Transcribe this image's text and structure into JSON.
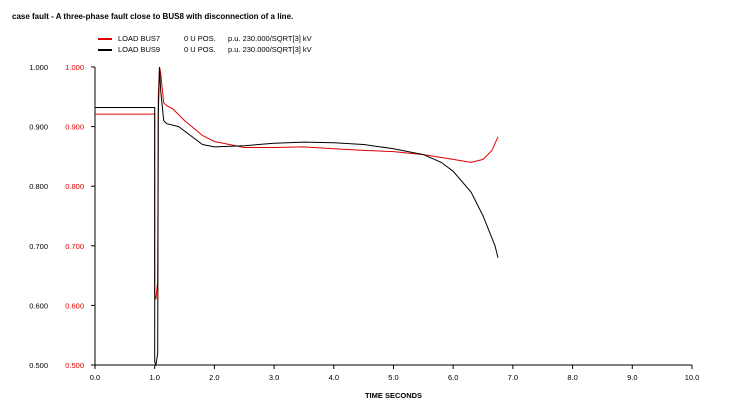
{
  "title": "case fault - A three-phase fault close to BUS8 with disconnection of a line.",
  "legend": [
    {
      "name": "LOAD BUS7",
      "pos": "0 U POS.",
      "unit": "p.u. 230.000/SQRT[3] kV",
      "color": "#e00000"
    },
    {
      "name": "LOAD BUS9",
      "pos": "0 U POS.",
      "unit": "p.u. 230.000/SQRT[3] kV",
      "color": "#000000"
    }
  ],
  "chart_data": {
    "type": "line",
    "xlabel": "TIME SECONDS",
    "xlim": [
      0,
      10
    ],
    "ylim": [
      0.5,
      1.0
    ],
    "x_ticks": [
      "0.0",
      "1.0",
      "2.0",
      "3.0",
      "4.0",
      "5.0",
      "6.0",
      "7.0",
      "8.0",
      "9.0",
      "10.0"
    ],
    "y_ticks_left": [
      "1.000",
      "0.900",
      "0.800",
      "0.700",
      "0.600",
      "0.500"
    ],
    "y_ticks_right": [
      "1.000",
      "0.900",
      "0.800",
      "0.700",
      "0.600",
      "0.500"
    ],
    "y_tick_values": [
      1.0,
      0.9,
      0.8,
      0.7,
      0.6,
      0.5
    ],
    "legend_position": "top-left",
    "grid": false,
    "series": [
      {
        "name": "LOAD BUS7",
        "color": "#e00000",
        "points": [
          [
            0,
            0.921
          ],
          [
            1.0,
            0.921
          ],
          [
            1.0,
            0.62
          ],
          [
            1.02,
            0.61
          ],
          [
            1.05,
            0.64
          ],
          [
            1.06,
            0.95
          ],
          [
            1.08,
            1.0
          ],
          [
            1.1,
            0.99
          ],
          [
            1.15,
            0.94
          ],
          [
            1.2,
            0.935
          ],
          [
            1.3,
            0.93
          ],
          [
            1.5,
            0.91
          ],
          [
            1.8,
            0.885
          ],
          [
            2.0,
            0.875
          ],
          [
            2.5,
            0.865
          ],
          [
            3.0,
            0.865
          ],
          [
            3.5,
            0.866
          ],
          [
            4.0,
            0.863
          ],
          [
            4.5,
            0.86
          ],
          [
            5.0,
            0.858
          ],
          [
            5.5,
            0.853
          ],
          [
            6.0,
            0.845
          ],
          [
            6.3,
            0.84
          ],
          [
            6.5,
            0.845
          ],
          [
            6.65,
            0.86
          ],
          [
            6.75,
            0.883
          ]
        ]
      },
      {
        "name": "LOAD BUS9",
        "color": "#000000",
        "points": [
          [
            0,
            0.932
          ],
          [
            1.0,
            0.932
          ],
          [
            1.0,
            0.505
          ],
          [
            1.02,
            0.5
          ],
          [
            1.05,
            0.52
          ],
          [
            1.06,
            0.92
          ],
          [
            1.08,
            1.0
          ],
          [
            1.1,
            0.96
          ],
          [
            1.15,
            0.91
          ],
          [
            1.2,
            0.905
          ],
          [
            1.4,
            0.9
          ],
          [
            1.6,
            0.885
          ],
          [
            1.8,
            0.87
          ],
          [
            2.0,
            0.866
          ],
          [
            2.5,
            0.868
          ],
          [
            3.0,
            0.872
          ],
          [
            3.5,
            0.874
          ],
          [
            4.0,
            0.873
          ],
          [
            4.5,
            0.87
          ],
          [
            5.0,
            0.863
          ],
          [
            5.5,
            0.853
          ],
          [
            5.8,
            0.84
          ],
          [
            6.0,
            0.825
          ],
          [
            6.3,
            0.79
          ],
          [
            6.5,
            0.75
          ],
          [
            6.7,
            0.7
          ],
          [
            6.75,
            0.68
          ]
        ]
      }
    ]
  }
}
